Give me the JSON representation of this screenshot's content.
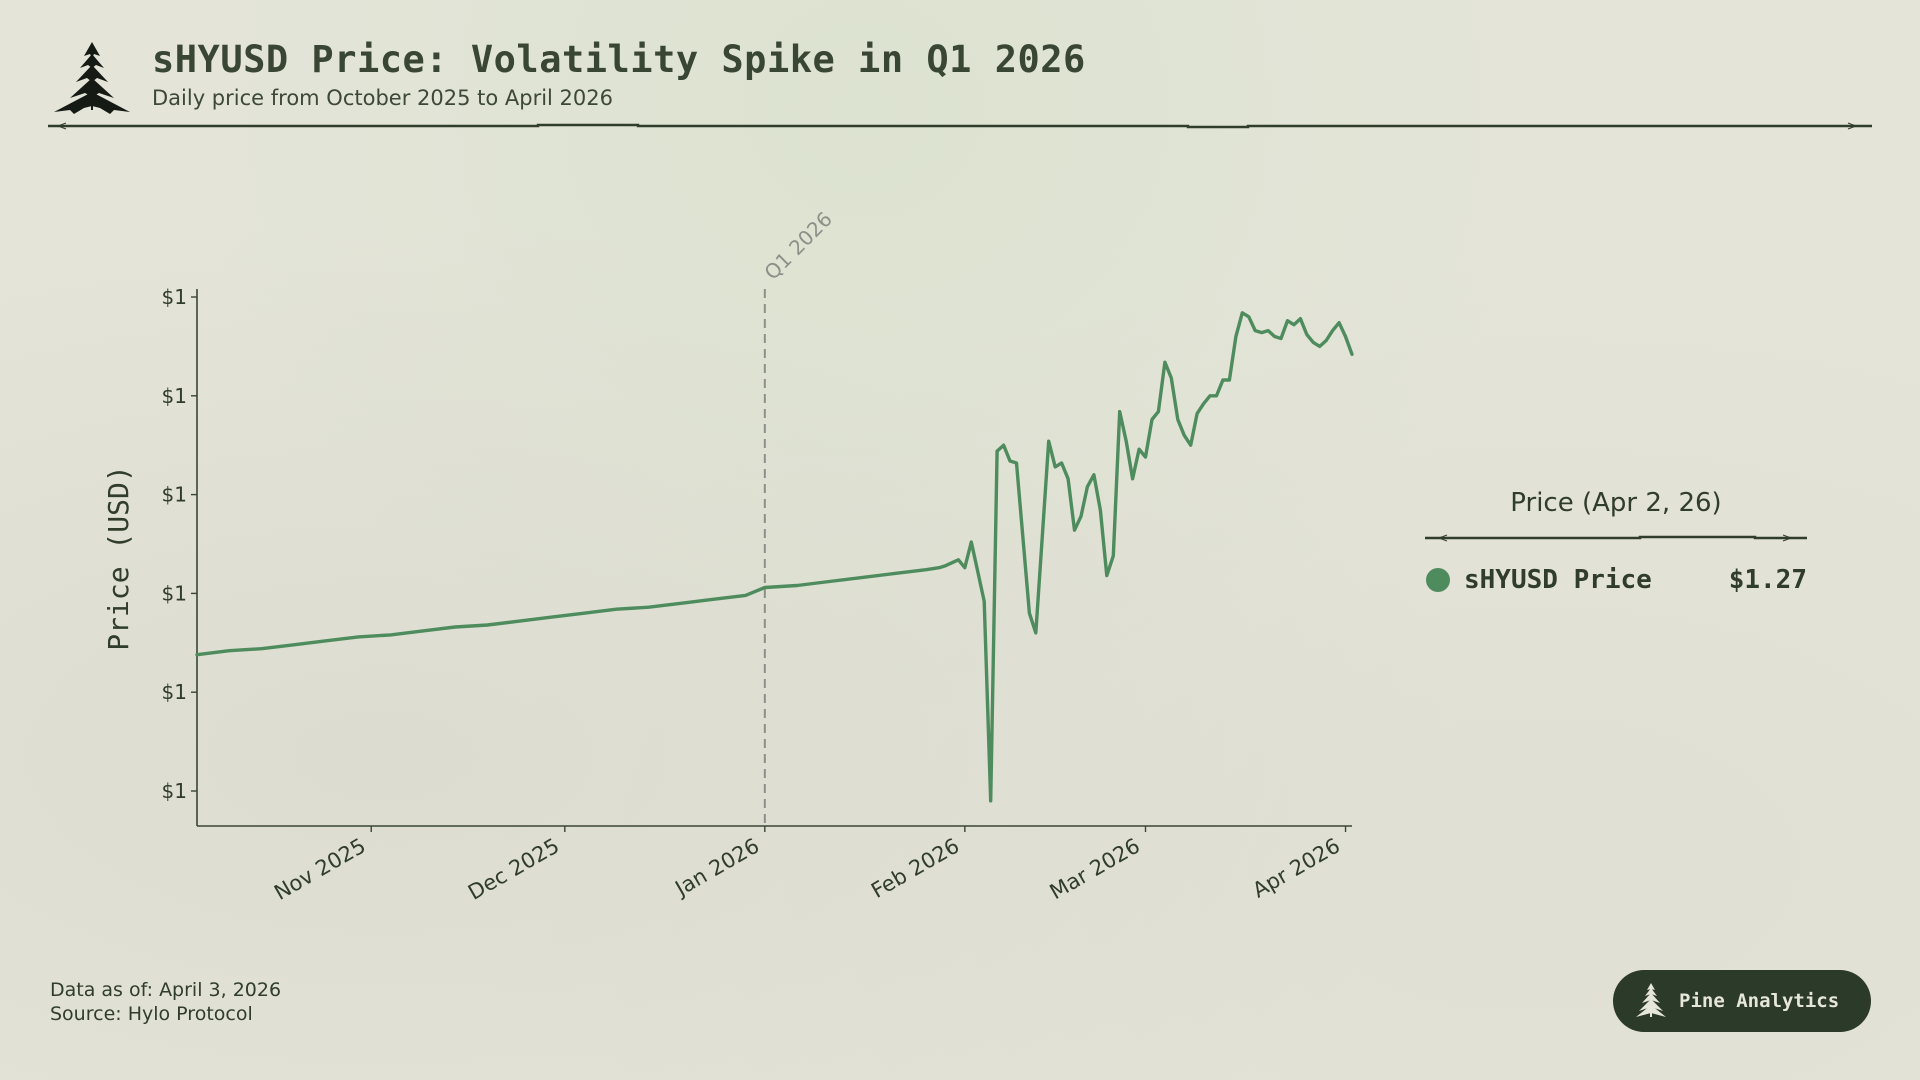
{
  "header": {
    "title": "sHYUSD Price: Volatility Spike in Q1 2026",
    "subtitle": "Daily price from October 2025 to April 2026",
    "logo_icon": "pine-tree-icon"
  },
  "legend": {
    "title": "Price (Apr 2, 26)",
    "items": [
      {
        "label": "sHYUSD Price",
        "value": "$1.27",
        "color": "#4e8c5e"
      }
    ]
  },
  "footer": {
    "data_as_of": "Data as of: April 3, 2026",
    "source": "Source: Hylo Protocol"
  },
  "brand": {
    "label": "Pine Analytics",
    "icon": "pine-tree-icon"
  },
  "colors": {
    "line": "#4e8c5e",
    "text": "#2f3d2a",
    "axis": "#3a4634",
    "annotation": "#8f8f8a",
    "badge_bg": "#2c3a29"
  },
  "chart_data": {
    "type": "line",
    "title": "sHYUSD Price: Volatility Spike in Q1 2026",
    "subtitle": "Daily price from October 2025 to April 2026",
    "xlabel": "",
    "ylabel": "Price (USD)",
    "x_range": [
      "2025-10-05",
      "2026-04-02"
    ],
    "ylim": [
      1.043,
      1.31
    ],
    "grid": false,
    "legend_position": "right",
    "x_ticks": [
      {
        "date": "2025-11-01",
        "label": "Nov 2025"
      },
      {
        "date": "2025-12-01",
        "label": "Dec 2025"
      },
      {
        "date": "2026-01-01",
        "label": "Jan 2026"
      },
      {
        "date": "2026-02-01",
        "label": "Feb 2026"
      },
      {
        "date": "2026-03-01",
        "label": "Mar 2026"
      },
      {
        "date": "2026-04-01",
        "label": "Apr 2026"
      }
    ],
    "y_ticks": [
      {
        "value": 1.3,
        "label": "$1"
      },
      {
        "value": 1.25,
        "label": "$1"
      },
      {
        "value": 1.2,
        "label": "$1"
      },
      {
        "value": 1.15,
        "label": "$1"
      },
      {
        "value": 1.1,
        "label": "$1"
      },
      {
        "value": 1.05,
        "label": "$1"
      }
    ],
    "annotations": [
      {
        "type": "vline",
        "date": "2026-01-01",
        "label": "Q1 2026",
        "style": "dashed"
      }
    ],
    "series": [
      {
        "name": "sHYUSD Price",
        "color": "#4e8c5e",
        "points": [
          [
            "2025-10-05",
            1.119
          ],
          [
            "2025-10-10",
            1.121
          ],
          [
            "2025-10-15",
            1.122
          ],
          [
            "2025-10-20",
            1.124
          ],
          [
            "2025-10-25",
            1.126
          ],
          [
            "2025-10-30",
            1.128
          ],
          [
            "2025-11-04",
            1.129
          ],
          [
            "2025-11-09",
            1.131
          ],
          [
            "2025-11-14",
            1.133
          ],
          [
            "2025-11-19",
            1.134
          ],
          [
            "2025-11-24",
            1.136
          ],
          [
            "2025-11-29",
            1.138
          ],
          [
            "2025-12-04",
            1.14
          ],
          [
            "2025-12-09",
            1.142
          ],
          [
            "2025-12-14",
            1.143
          ],
          [
            "2025-12-19",
            1.145
          ],
          [
            "2025-12-24",
            1.147
          ],
          [
            "2025-12-29",
            1.149
          ],
          [
            "2026-01-01",
            1.153
          ],
          [
            "2026-01-06",
            1.154
          ],
          [
            "2026-01-11",
            1.156
          ],
          [
            "2026-01-16",
            1.158
          ],
          [
            "2026-01-21",
            1.16
          ],
          [
            "2026-01-26",
            1.162
          ],
          [
            "2026-01-28",
            1.163
          ],
          [
            "2026-01-29",
            1.164
          ],
          [
            "2026-01-31",
            1.167
          ],
          [
            "2026-02-01",
            1.163
          ],
          [
            "2026-02-02",
            1.176
          ],
          [
            "2026-02-03",
            1.161
          ],
          [
            "2026-02-04",
            1.146
          ],
          [
            "2026-02-05",
            1.045
          ],
          [
            "2026-02-06",
            1.222
          ],
          [
            "2026-02-07",
            1.225
          ],
          [
            "2026-02-08",
            1.217
          ],
          [
            "2026-02-09",
            1.216
          ],
          [
            "2026-02-11",
            1.14
          ],
          [
            "2026-02-12",
            1.13
          ],
          [
            "2026-02-14",
            1.227
          ],
          [
            "2026-02-15",
            1.214
          ],
          [
            "2026-02-16",
            1.216
          ],
          [
            "2026-02-17",
            1.208
          ],
          [
            "2026-02-18",
            1.182
          ],
          [
            "2026-02-19",
            1.189
          ],
          [
            "2026-02-20",
            1.204
          ],
          [
            "2026-02-21",
            1.21
          ],
          [
            "2026-02-22",
            1.192
          ],
          [
            "2026-02-23",
            1.159
          ],
          [
            "2026-02-24",
            1.169
          ],
          [
            "2026-02-25",
            1.242
          ],
          [
            "2026-02-26",
            1.227
          ],
          [
            "2026-02-27",
            1.208
          ],
          [
            "2026-02-28",
            1.223
          ],
          [
            "2026-03-01",
            1.219
          ],
          [
            "2026-03-02",
            1.238
          ],
          [
            "2026-03-03",
            1.242
          ],
          [
            "2026-03-04",
            1.267
          ],
          [
            "2026-03-05",
            1.259
          ],
          [
            "2026-03-06",
            1.238
          ],
          [
            "2026-03-07",
            1.23
          ],
          [
            "2026-03-08",
            1.225
          ],
          [
            "2026-03-09",
            1.241
          ],
          [
            "2026-03-10",
            1.246
          ],
          [
            "2026-03-11",
            1.25
          ],
          [
            "2026-03-12",
            1.25
          ],
          [
            "2026-03-13",
            1.258
          ],
          [
            "2026-03-14",
            1.258
          ],
          [
            "2026-03-15",
            1.28
          ],
          [
            "2026-03-16",
            1.292
          ],
          [
            "2026-03-17",
            1.29
          ],
          [
            "2026-03-18",
            1.283
          ],
          [
            "2026-03-19",
            1.282
          ],
          [
            "2026-03-20",
            1.283
          ],
          [
            "2026-03-21",
            1.28
          ],
          [
            "2026-03-22",
            1.279
          ],
          [
            "2026-03-23",
            1.288
          ],
          [
            "2026-03-24",
            1.286
          ],
          [
            "2026-03-25",
            1.289
          ],
          [
            "2026-03-26",
            1.281
          ],
          [
            "2026-03-27",
            1.277
          ],
          [
            "2026-03-28",
            1.275
          ],
          [
            "2026-03-29",
            1.278
          ],
          [
            "2026-03-30",
            1.283
          ],
          [
            "2026-03-31",
            1.287
          ],
          [
            "2026-04-01",
            1.28
          ],
          [
            "2026-04-02",
            1.271
          ]
        ]
      }
    ]
  }
}
